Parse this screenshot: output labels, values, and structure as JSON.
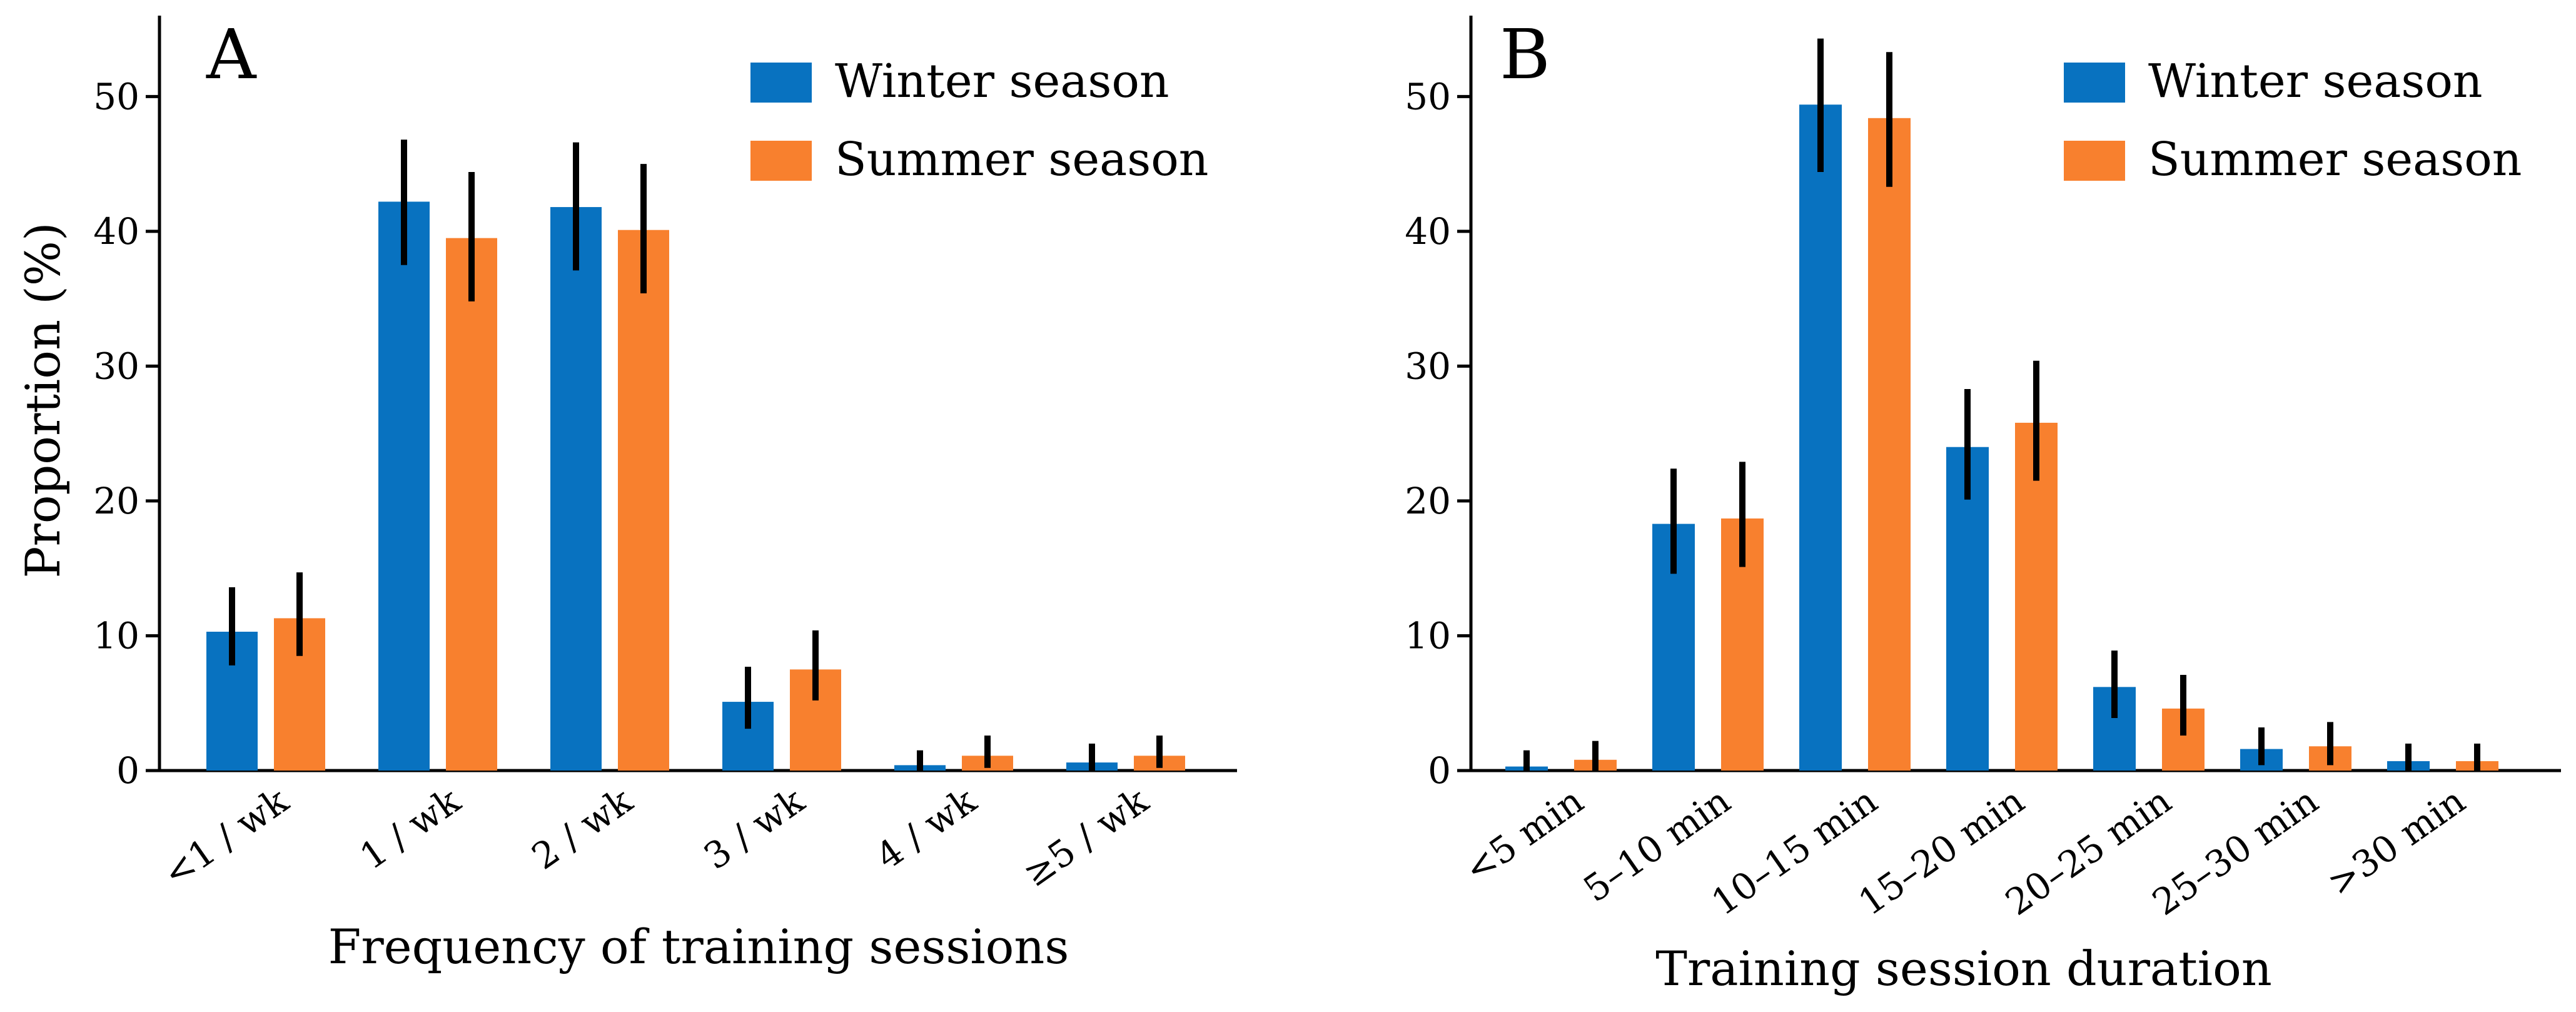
{
  "colors": {
    "winter": "#0872C0",
    "summer": "#F8802E",
    "axis": "#000000"
  },
  "chart_data": [
    {
      "panel": "A",
      "type": "bar",
      "xlabel": "Frequency of training sessions",
      "ylabel": "Proportion (%)",
      "ylim": [
        0,
        56
      ],
      "yticks": [
        0,
        10,
        20,
        30,
        40,
        50
      ],
      "legend": "top-right",
      "grid": false,
      "categories": [
        "<1 / wk",
        "1 / wk",
        "2 / wk",
        "3 / wk",
        "4 / wk",
        "≥5 / wk"
      ],
      "series": [
        {
          "name": "Winter season",
          "color_key": "winter",
          "values": [
            10.3,
            42.2,
            41.8,
            5.1,
            0.4,
            0.6
          ],
          "err_low": [
            7.8,
            37.5,
            37.1,
            3.1,
            0.0,
            0.0
          ],
          "err_high": [
            13.6,
            46.8,
            46.6,
            7.7,
            1.5,
            2.0
          ]
        },
        {
          "name": "Summer season",
          "color_key": "summer",
          "values": [
            11.3,
            39.5,
            40.1,
            7.5,
            1.1,
            1.1
          ],
          "err_low": [
            8.5,
            34.8,
            35.4,
            5.2,
            0.2,
            0.2
          ],
          "err_high": [
            14.7,
            44.4,
            45.0,
            10.4,
            2.6,
            2.6
          ]
        }
      ]
    },
    {
      "panel": "B",
      "type": "bar",
      "xlabel": "Training session duration",
      "ylabel": "",
      "ylim": [
        0,
        56
      ],
      "yticks": [
        0,
        10,
        20,
        30,
        40,
        50
      ],
      "legend": "top-right",
      "grid": false,
      "categories": [
        "<5 min",
        "5–10 min",
        "10–15 min",
        "15–20 min",
        "20–25 min",
        "25–30 min",
        ">30 min"
      ],
      "series": [
        {
          "name": "Winter season",
          "color_key": "winter",
          "values": [
            0.3,
            18.3,
            49.4,
            24.0,
            6.2,
            1.6,
            0.7
          ],
          "err_low": [
            0.0,
            14.6,
            44.4,
            20.1,
            3.9,
            0.4,
            0.0
          ],
          "err_high": [
            1.5,
            22.4,
            54.3,
            28.3,
            8.9,
            3.2,
            2.0
          ]
        },
        {
          "name": "Summer season",
          "color_key": "summer",
          "values": [
            0.8,
            18.7,
            48.4,
            25.8,
            4.6,
            1.8,
            0.7
          ],
          "err_low": [
            0.0,
            15.1,
            43.3,
            21.5,
            2.6,
            0.4,
            0.0
          ],
          "err_high": [
            2.2,
            22.9,
            53.3,
            30.4,
            7.1,
            3.6,
            2.0
          ]
        }
      ]
    }
  ]
}
